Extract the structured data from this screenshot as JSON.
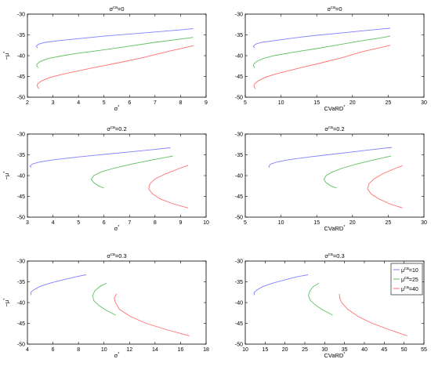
{
  "chart_data": [
    {
      "type": "line",
      "title": {
        "base": "σ",
        "sup": "ca",
        "rest": "=0"
      },
      "xlabel": {
        "base": "σ",
        "sup": "*",
        "rest": ""
      },
      "ylabel": {
        "base": "−μ",
        "sup": "*",
        "rest": ""
      },
      "xlim": [
        2,
        9
      ],
      "ylim": [
        -50,
        -30
      ],
      "xticks": [
        2,
        3,
        4,
        5,
        6,
        7,
        8,
        9
      ],
      "yticks": [
        -30,
        -35,
        -40,
        -45,
        -50
      ],
      "series": [
        {
          "color": "#8080ff",
          "x": [
            2.4,
            2.35,
            2.36,
            2.45,
            2.7,
            3.2,
            4,
            5,
            6,
            7,
            8,
            8.5
          ],
          "y": [
            -38.1,
            -37.8,
            -37.6,
            -37.2,
            -36.8,
            -36.4,
            -35.9,
            -35.3,
            -34.8,
            -34.3,
            -33.8,
            -33.5
          ]
        },
        {
          "color": "#60c060",
          "x": [
            2.42,
            2.36,
            2.38,
            2.5,
            2.8,
            3.4,
            4,
            5,
            6,
            7,
            8,
            8.5
          ],
          "y": [
            -42.9,
            -42.4,
            -42.0,
            -41.4,
            -40.7,
            -40.0,
            -39.4,
            -38.6,
            -37.7,
            -36.8,
            -36.0,
            -35.6
          ]
        },
        {
          "color": "#ff7070",
          "x": [
            2.45,
            2.38,
            2.4,
            2.55,
            2.9,
            3.5,
            4.5,
            5.5,
            6.5,
            7.5,
            8.5
          ],
          "y": [
            -48.0,
            -47.3,
            -46.8,
            -46.1,
            -45.2,
            -44.3,
            -43.0,
            -41.8,
            -40.5,
            -39.0,
            -37.6
          ]
        }
      ]
    },
    {
      "type": "line",
      "title": {
        "base": "σ",
        "sup": "ca",
        "rest": "=0"
      },
      "xlabel": {
        "base": "CVaRD",
        "sup": "*",
        "rest": ""
      },
      "ylabel": {
        "base": "",
        "sup": "",
        "rest": ""
      },
      "xlim": [
        5,
        30
      ],
      "ylim": [
        -50,
        -30
      ],
      "xticks": [
        5,
        10,
        15,
        20,
        25,
        30
      ],
      "yticks": [
        -30,
        -35,
        -40,
        -45,
        -50
      ],
      "series": [
        {
          "color": "#8080ff",
          "x": [
            6.3,
            6.15,
            6.2,
            6.5,
            7.3,
            9,
            12,
            15,
            18,
            21,
            24,
            25.3
          ],
          "y": [
            -38.1,
            -37.8,
            -37.6,
            -37.2,
            -36.8,
            -36.4,
            -35.7,
            -35.1,
            -34.6,
            -34.1,
            -33.6,
            -33.4
          ]
        },
        {
          "color": "#60c060",
          "x": [
            6.3,
            6.15,
            6.2,
            6.6,
            7.5,
            9,
            12,
            15,
            18,
            21,
            24,
            25.3
          ],
          "y": [
            -42.9,
            -42.4,
            -42.0,
            -41.4,
            -40.7,
            -40.0,
            -39.1,
            -38.3,
            -37.4,
            -36.5,
            -35.7,
            -35.3
          ]
        },
        {
          "color": "#ff7070",
          "x": [
            6.4,
            6.2,
            6.3,
            6.8,
            7.8,
            9.5,
            12.5,
            15.5,
            18.5,
            21.5,
            25.3
          ],
          "y": [
            -48.0,
            -47.3,
            -46.8,
            -46.1,
            -45.2,
            -44.3,
            -43.0,
            -41.8,
            -40.5,
            -39.0,
            -37.5
          ]
        }
      ]
    },
    {
      "type": "line",
      "title": {
        "base": "σ",
        "sup": "ca",
        "rest": "=0.2"
      },
      "xlabel": {
        "base": "σ",
        "sup": "*",
        "rest": ""
      },
      "ylabel": {
        "base": "−μ",
        "sup": "*",
        "rest": ""
      },
      "xlim": [
        3,
        10
      ],
      "ylim": [
        -50,
        -30
      ],
      "xticks": [
        3,
        4,
        5,
        6,
        7,
        8,
        9,
        10
      ],
      "yticks": [
        -30,
        -35,
        -40,
        -45,
        -50
      ],
      "series": [
        {
          "color": "#8080ff",
          "x": [
            3.15,
            3.1,
            3.2,
            3.5,
            4,
            5,
            6,
            7,
            8,
            8.6
          ],
          "y": [
            -38.1,
            -37.7,
            -37.2,
            -36.7,
            -36.2,
            -35.5,
            -34.9,
            -34.3,
            -33.7,
            -33.3
          ]
        },
        {
          "color": "#60c060",
          "x": [
            6.0,
            5.8,
            5.6,
            5.5,
            5.6,
            5.9,
            6.4,
            7.1,
            7.9,
            8.7
          ],
          "y": [
            -43.0,
            -42.5,
            -41.7,
            -40.9,
            -40.0,
            -39.1,
            -38.2,
            -37.2,
            -36.2,
            -35.3
          ]
        },
        {
          "color": "#ff7070",
          "x": [
            9.3,
            8.7,
            8.2,
            7.9,
            7.75,
            7.8,
            8.0,
            8.4,
            8.9,
            9.3
          ],
          "y": [
            -47.8,
            -46.8,
            -45.6,
            -44.4,
            -43.2,
            -42.0,
            -40.8,
            -39.6,
            -38.4,
            -37.5
          ]
        }
      ]
    },
    {
      "type": "line",
      "title": {
        "base": "σ",
        "sup": "ca",
        "rest": "=0.2"
      },
      "xlabel": {
        "base": "CVaRD",
        "sup": "*",
        "rest": ""
      },
      "ylabel": {
        "base": "",
        "sup": "",
        "rest": ""
      },
      "xlim": [
        5,
        30
      ],
      "ylim": [
        -50,
        -30
      ],
      "xticks": [
        5,
        10,
        15,
        20,
        25,
        30
      ],
      "yticks": [
        -30,
        -35,
        -40,
        -45,
        -50
      ],
      "series": [
        {
          "color": "#8080ff",
          "x": [
            8.4,
            8.3,
            8.6,
            9.5,
            11,
            14,
            17,
            20,
            23,
            25.5
          ],
          "y": [
            -38.1,
            -37.7,
            -37.2,
            -36.7,
            -36.2,
            -35.5,
            -34.9,
            -34.3,
            -33.7,
            -33.2
          ]
        },
        {
          "color": "#60c060",
          "x": [
            17.8,
            17.0,
            16.3,
            16.0,
            16.3,
            17.2,
            18.6,
            20.6,
            23.0,
            25.4
          ],
          "y": [
            -43.0,
            -42.5,
            -41.7,
            -40.9,
            -40.0,
            -39.1,
            -38.2,
            -37.2,
            -36.2,
            -35.3
          ]
        },
        {
          "color": "#ff7070",
          "x": [
            27.0,
            25.2,
            23.7,
            22.6,
            22.1,
            22.3,
            23.0,
            24.2,
            25.8,
            27.0
          ],
          "y": [
            -47.8,
            -46.8,
            -45.6,
            -44.4,
            -43.2,
            -42.0,
            -40.8,
            -39.6,
            -38.4,
            -37.6
          ]
        }
      ]
    },
    {
      "type": "line",
      "title": {
        "base": "σ",
        "sup": "ca",
        "rest": "=0.3"
      },
      "xlabel": {
        "base": "σ",
        "sup": "*",
        "rest": ""
      },
      "ylabel": {
        "base": "−μ",
        "sup": "*",
        "rest": ""
      },
      "xlim": [
        4,
        18
      ],
      "ylim": [
        -50,
        -30
      ],
      "xticks": [
        4,
        6,
        8,
        10,
        12,
        14,
        16,
        18
      ],
      "yticks": [
        -30,
        -35,
        -40,
        -45,
        -50
      ],
      "series": [
        {
          "color": "#8080ff",
          "x": [
            4.3,
            4.25,
            4.5,
            5,
            5.8,
            6.8,
            7.8,
            8.6
          ],
          "y": [
            -38.2,
            -37.6,
            -36.9,
            -36.1,
            -35.3,
            -34.5,
            -33.8,
            -33.3
          ]
        },
        {
          "color": "#60c060",
          "x": [
            10.9,
            10.2,
            9.6,
            9.2,
            9.1,
            9.3,
            9.7,
            10.2
          ],
          "y": [
            -43.0,
            -41.9,
            -40.7,
            -39.5,
            -38.3,
            -37.1,
            -36.1,
            -35.3
          ]
        },
        {
          "color": "#ff7070",
          "x": [
            16.7,
            15.0,
            13.3,
            12.1,
            11.2,
            10.9,
            10.8,
            11.0
          ],
          "y": [
            -48.0,
            -46.6,
            -45.0,
            -43.4,
            -41.6,
            -40.0,
            -38.9,
            -37.9
          ]
        }
      ]
    },
    {
      "type": "line",
      "title": {
        "base": "σ",
        "sup": "ca",
        "rest": "=0.3"
      },
      "xlabel": {
        "base": "CVaRD",
        "sup": "*",
        "rest": ""
      },
      "ylabel": {
        "base": "",
        "sup": "",
        "rest": ""
      },
      "xlim": [
        10,
        55
      ],
      "ylim": [
        -50,
        -30
      ],
      "xticks": [
        10,
        15,
        20,
        25,
        30,
        35,
        40,
        45,
        50,
        55
      ],
      "yticks": [
        -30,
        -35,
        -40,
        -45,
        -50
      ],
      "series": [
        {
          "color": "#8080ff",
          "x": [
            12.3,
            12.2,
            13.0,
            14.5,
            17,
            20,
            23,
            25.8
          ],
          "y": [
            -38.2,
            -37.6,
            -36.9,
            -36.1,
            -35.3,
            -34.5,
            -33.8,
            -33.3
          ]
        },
        {
          "color": "#60c060",
          "x": [
            32.0,
            29.8,
            27.8,
            26.4,
            25.9,
            26.3,
            27.2,
            28.6
          ],
          "y": [
            -43.0,
            -41.9,
            -40.7,
            -39.5,
            -38.3,
            -37.1,
            -36.1,
            -35.3
          ]
        },
        {
          "color": "#ff7070",
          "x": [
            50.8,
            46.5,
            42.0,
            38.5,
            35.8,
            34.3,
            33.8,
            33.7
          ],
          "y": [
            -48.0,
            -46.6,
            -45.0,
            -43.4,
            -41.6,
            -40.0,
            -38.9,
            -37.9
          ]
        }
      ],
      "legend": {
        "position": "top-right",
        "entries": [
          {
            "base": "μ",
            "sup": "ca",
            "rest": "=10",
            "color": "#8080ff"
          },
          {
            "base": "μ",
            "sup": "ca",
            "rest": "=25",
            "color": "#60c060"
          },
          {
            "base": "μ",
            "sup": "ca",
            "rest": "=40",
            "color": "#ff7070"
          }
        ]
      }
    }
  ]
}
